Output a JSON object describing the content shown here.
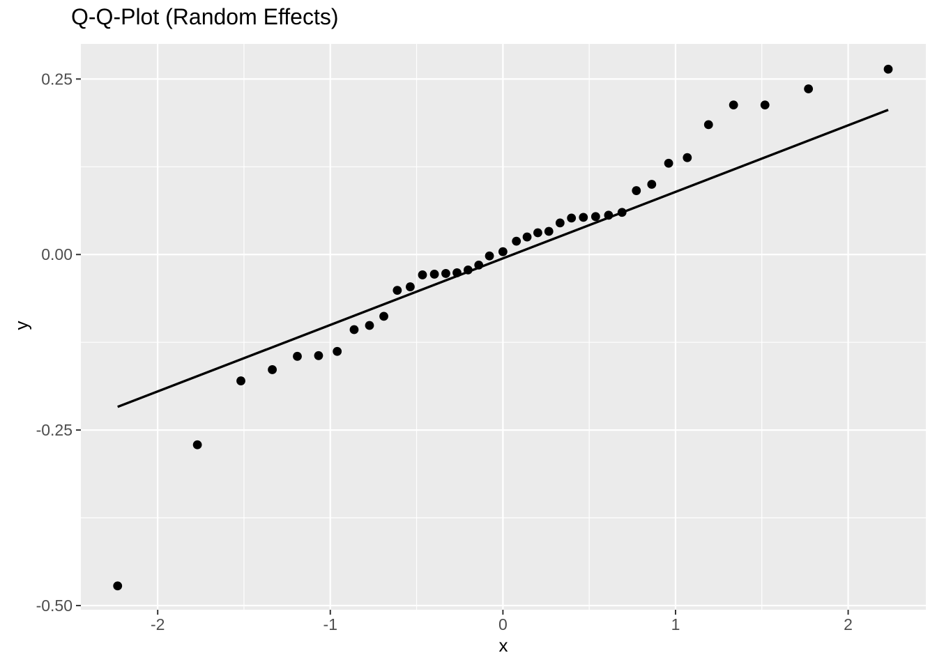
{
  "chart_data": {
    "type": "scatter",
    "title": "Q-Q-Plot (Random Effects)",
    "xlabel": "x",
    "ylabel": "y",
    "xlim": [
      -2.445,
      2.45
    ],
    "ylim": [
      -0.506,
      0.3
    ],
    "grid": true,
    "legend": "none",
    "panel_background": "#EBEBEB",
    "grid_color": "#FFFFFF",
    "tick_mark_color": "#333333",
    "tick_label_color": "#4D4D4D",
    "point_color": "#000000",
    "line_color": "#000000",
    "x_major_ticks": [
      -2,
      -1,
      0,
      1,
      2
    ],
    "x_tick_labels": [
      "-2",
      "-1",
      "0",
      "1",
      "2"
    ],
    "x_minor_ticks": [
      -1.5,
      -0.5,
      0.5,
      1.5
    ],
    "y_major_ticks": [
      0.25,
      0.0,
      -0.25,
      -0.5
    ],
    "y_tick_labels": [
      "0.25",
      "0.00",
      "-0.25",
      "-0.50"
    ],
    "y_minor_ticks": [
      0.125,
      -0.125,
      -0.375
    ],
    "series": [
      {
        "name": "sample-vs-theoretical-quantiles",
        "type": "points",
        "points": [
          [
            -2.232,
            -0.472
          ],
          [
            -1.77,
            -0.271
          ],
          [
            -1.518,
            -0.18
          ],
          [
            -1.336,
            -0.164
          ],
          [
            -1.191,
            -0.145
          ],
          [
            -1.068,
            -0.144
          ],
          [
            -0.96,
            -0.138
          ],
          [
            -0.862,
            -0.107
          ],
          [
            -0.773,
            -0.101
          ],
          [
            -0.69,
            -0.088
          ],
          [
            -0.612,
            -0.051
          ],
          [
            -0.537,
            -0.046
          ],
          [
            -0.466,
            -0.029
          ],
          [
            -0.397,
            -0.028
          ],
          [
            -0.331,
            -0.027
          ],
          [
            -0.266,
            -0.026
          ],
          [
            -0.202,
            -0.022
          ],
          [
            -0.14,
            -0.015
          ],
          [
            -0.078,
            -0.002
          ],
          [
            0.0,
            0.004
          ],
          [
            0.078,
            0.019
          ],
          [
            0.14,
            0.025
          ],
          [
            0.202,
            0.031
          ],
          [
            0.266,
            0.033
          ],
          [
            0.331,
            0.045
          ],
          [
            0.397,
            0.052
          ],
          [
            0.466,
            0.053
          ],
          [
            0.537,
            0.054
          ],
          [
            0.612,
            0.056
          ],
          [
            0.69,
            0.06
          ],
          [
            0.773,
            0.091
          ],
          [
            0.862,
            0.1
          ],
          [
            0.96,
            0.13
          ],
          [
            1.068,
            0.138
          ],
          [
            1.191,
            0.185
          ],
          [
            1.336,
            0.213
          ],
          [
            1.518,
            0.213
          ],
          [
            1.77,
            0.236
          ],
          [
            2.232,
            0.264
          ]
        ]
      },
      {
        "name": "qq-reference-line",
        "type": "line",
        "x1": -2.232,
        "y1": -0.217,
        "x2": 2.232,
        "y2": 0.206,
        "slope": 0.095,
        "intercept": -0.006
      }
    ]
  }
}
